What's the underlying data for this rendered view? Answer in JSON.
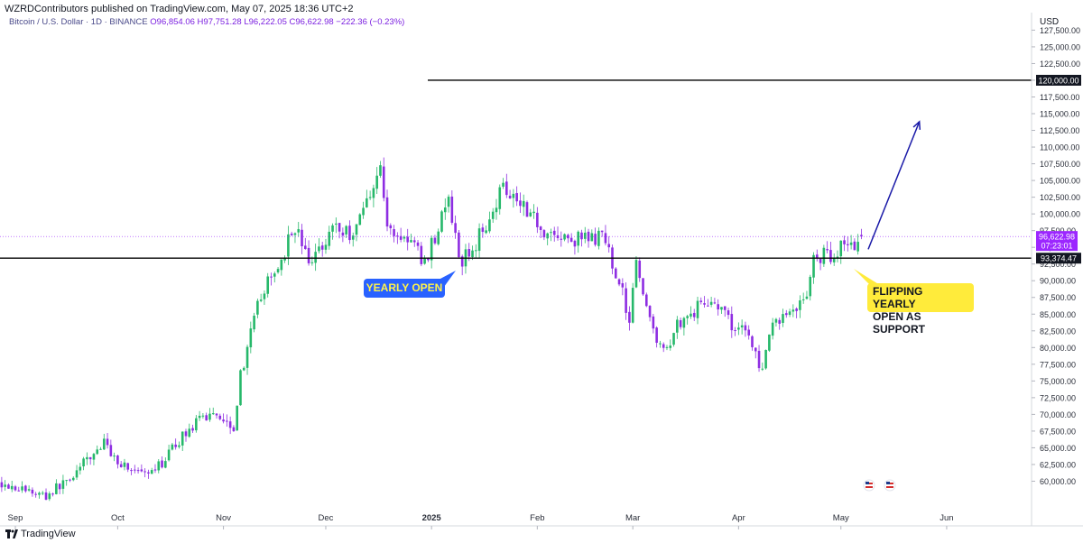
{
  "header": {
    "published_by": "WZRDContributors published on TradingView.com, May 07, 2025 18:36 UTC+2",
    "symbol": "Bitcoin / U.S. Dollar · 1D · BINANCE",
    "ohlc": "O96,854.06  H97,751.28  L96,222.05  C96,622.98  −222.36 (−0.23%)"
  },
  "currency": "USD",
  "footer": {
    "brand": "TradingView"
  },
  "annotations": {
    "yearly_open": "YEARLY OPEN",
    "flipping": [
      "FLIPPING YEARLY",
      "OPEN AS SUPPORT"
    ]
  },
  "colors": {
    "up": "#26b86a",
    "down": "#8e2de2",
    "accent_line": "#000000",
    "arrow": "#1a1aa8",
    "price_tag": "#9c27ff"
  },
  "chart_data": {
    "type": "candlestick",
    "ylim": [
      57500,
      128500
    ],
    "y_ticks": [
      "60,000.00",
      "62,500.00",
      "65,000.00",
      "67,500.00",
      "70,000.00",
      "72,500.00",
      "75,000.00",
      "77,500.00",
      "80,000.00",
      "82,500.00",
      "85,000.00",
      "87,500.00",
      "90,000.00",
      "92,500.00",
      "95,000.00",
      "97,500.00",
      "100,000.00",
      "102,500.00",
      "105,000.00",
      "107,500.00",
      "110,000.00",
      "112,500.00",
      "115,000.00",
      "117,500.00",
      "120,000.00",
      "122,500.00",
      "125,000.00",
      "127,500.00"
    ],
    "x_ticks": [
      "Sep",
      "Oct",
      "Nov",
      "Dec",
      "2025",
      "Feb",
      "Mar",
      "Apr",
      "May",
      "Jun"
    ],
    "horizontal_levels": [
      {
        "label": "120,000.00",
        "value": 120000
      },
      {
        "label": "93,374.47",
        "value": 93374.47
      }
    ],
    "last_price": {
      "label": "96,622.98",
      "countdown": "07:23:01",
      "value": 96622.98
    },
    "waypoints": [
      [
        "2024-08-28",
        59800
      ],
      [
        "2024-09-05",
        58500
      ],
      [
        "2024-09-10",
        57800
      ],
      [
        "2024-09-17",
        60500
      ],
      [
        "2024-09-27",
        65700
      ],
      [
        "2024-10-01",
        63000
      ],
      [
        "2024-10-10",
        60500
      ],
      [
        "2024-10-14",
        62800
      ],
      [
        "2024-10-21",
        67400
      ],
      [
        "2024-10-29",
        70500
      ],
      [
        "2024-11-04",
        68300
      ],
      [
        "2024-11-06",
        75800
      ],
      [
        "2024-11-12",
        88000
      ],
      [
        "2024-11-16",
        91000
      ],
      [
        "2024-11-22",
        98300
      ],
      [
        "2024-11-26",
        92500
      ],
      [
        "2024-12-04",
        98800
      ],
      [
        "2024-12-05",
        97300
      ],
      [
        "2024-12-09",
        97200
      ],
      [
        "2024-12-16",
        106000
      ],
      [
        "2024-12-17",
        107000
      ],
      [
        "2024-12-19",
        97800
      ],
      [
        "2024-12-26",
        95800
      ],
      [
        "2024-12-30",
        92700
      ],
      [
        "2025-01-06",
        102200
      ],
      [
        "2025-01-09",
        92800
      ],
      [
        "2025-01-13",
        94500
      ],
      [
        "2025-01-20",
        102000
      ],
      [
        "2025-01-22",
        104500
      ],
      [
        "2025-01-28",
        101500
      ],
      [
        "2025-02-03",
        97500
      ],
      [
        "2025-02-10",
        96000
      ],
      [
        "2025-02-20",
        96500
      ],
      [
        "2025-02-24",
        91500
      ],
      [
        "2025-02-28",
        84300
      ],
      [
        "2025-03-02",
        94200
      ],
      [
        "2025-03-04",
        87000
      ],
      [
        "2025-03-10",
        79000
      ],
      [
        "2025-03-14",
        83600
      ],
      [
        "2025-03-24",
        87500
      ],
      [
        "2025-03-31",
        82500
      ],
      [
        "2025-04-02",
        84000
      ],
      [
        "2025-04-08",
        76300
      ],
      [
        "2025-04-11",
        83500
      ],
      [
        "2025-04-21",
        87500
      ],
      [
        "2025-04-23",
        93500
      ],
      [
        "2025-04-30",
        94200
      ],
      [
        "2025-05-02",
        96500
      ],
      [
        "2025-05-05",
        94300
      ],
      [
        "2025-05-07",
        96622.98
      ]
    ],
    "projection_arrow": {
      "from": [
        "2025-05-09",
        94700
      ],
      "to": [
        "2025-05-24",
        113800
      ]
    }
  }
}
